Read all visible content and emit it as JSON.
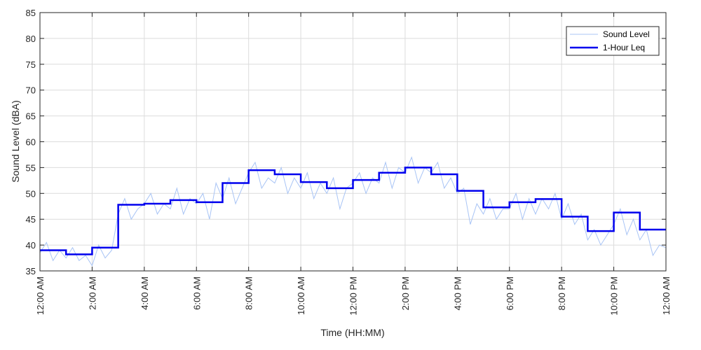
{
  "chart_data": {
    "type": "line",
    "title": "",
    "xlabel": "Time (HH:MM)",
    "ylabel": "Sound Level (dBA)",
    "xlim": [
      0,
      24
    ],
    "ylim": [
      35,
      85
    ],
    "y_ticks": [
      "35",
      "40",
      "45",
      "50",
      "55",
      "60",
      "65",
      "70",
      "75",
      "80",
      "85"
    ],
    "x_ticks": [
      "12:00 AM",
      "2:00 AM",
      "4:00 AM",
      "6:00 AM",
      "8:00 AM",
      "10:00 AM",
      "12:00 PM",
      "2:00 PM",
      "4:00 PM",
      "6:00 PM",
      "8:00 PM",
      "10:00 PM",
      "12:00 AM"
    ],
    "grid": true,
    "legend_position": "top-right",
    "series": [
      {
        "name": "Sound Level",
        "color": "#a8c4f5",
        "style": "thin",
        "x": [
          0,
          0.25,
          0.5,
          0.75,
          1,
          1.25,
          1.5,
          1.75,
          2,
          2.25,
          2.5,
          2.75,
          3,
          3.25,
          3.5,
          3.75,
          4,
          4.25,
          4.5,
          4.75,
          5,
          5.25,
          5.5,
          5.75,
          6,
          6.25,
          6.5,
          6.75,
          7,
          7.25,
          7.5,
          7.75,
          8,
          8.25,
          8.5,
          8.75,
          9,
          9.25,
          9.5,
          9.75,
          10,
          10.25,
          10.5,
          10.75,
          11,
          11.25,
          11.5,
          11.75,
          12,
          12.25,
          12.5,
          12.75,
          13,
          13.25,
          13.5,
          13.75,
          14,
          14.25,
          14.5,
          14.75,
          15,
          15.25,
          15.5,
          15.75,
          16,
          16.25,
          16.5,
          16.75,
          17,
          17.25,
          17.5,
          17.75,
          18,
          18.25,
          18.5,
          18.75,
          19,
          19.25,
          19.5,
          19.75,
          20,
          20.25,
          20.5,
          20.75,
          21,
          21.25,
          21.5,
          21.75,
          22,
          22.25,
          22.5,
          22.75,
          23,
          23.25,
          23.5,
          23.75,
          24
        ],
        "values": [
          38.5,
          40.5,
          37,
          39,
          37.5,
          39.5,
          37,
          38,
          36,
          40,
          37.5,
          39,
          46,
          49,
          45,
          47,
          48,
          50,
          46,
          48,
          47,
          51,
          46,
          49,
          48,
          50,
          45,
          52,
          49,
          53,
          48,
          51,
          54,
          56,
          51,
          53,
          52,
          55,
          50,
          53,
          51,
          54,
          49,
          52,
          50,
          53,
          47,
          51,
          52,
          54,
          50,
          53,
          52,
          56,
          51,
          55,
          54,
          57,
          52,
          55,
          54,
          56,
          51,
          53,
          50,
          51,
          44,
          48,
          46,
          49,
          45,
          47,
          47,
          50,
          45,
          49,
          46,
          49,
          47,
          50,
          45,
          48,
          44,
          46,
          41,
          43,
          40,
          42,
          44,
          47,
          42,
          45,
          41,
          43,
          38,
          40,
          39.5
        ]
      },
      {
        "name": "1-Hour Leq",
        "color": "#0000ee",
        "style": "step",
        "x": [
          0,
          1,
          2,
          3,
          4,
          5,
          6,
          7,
          8,
          9,
          10,
          11,
          12,
          13,
          14,
          15,
          16,
          17,
          18,
          19,
          20,
          21,
          22,
          23,
          24
        ],
        "values": [
          39,
          38.2,
          39.5,
          47.8,
          48,
          48.7,
          48.3,
          52,
          54.5,
          53.7,
          52.2,
          51,
          52.6,
          54,
          55,
          53.7,
          50.5,
          47.3,
          48.3,
          48.9,
          45.5,
          42.7,
          46.3,
          43,
          43
        ]
      }
    ]
  }
}
